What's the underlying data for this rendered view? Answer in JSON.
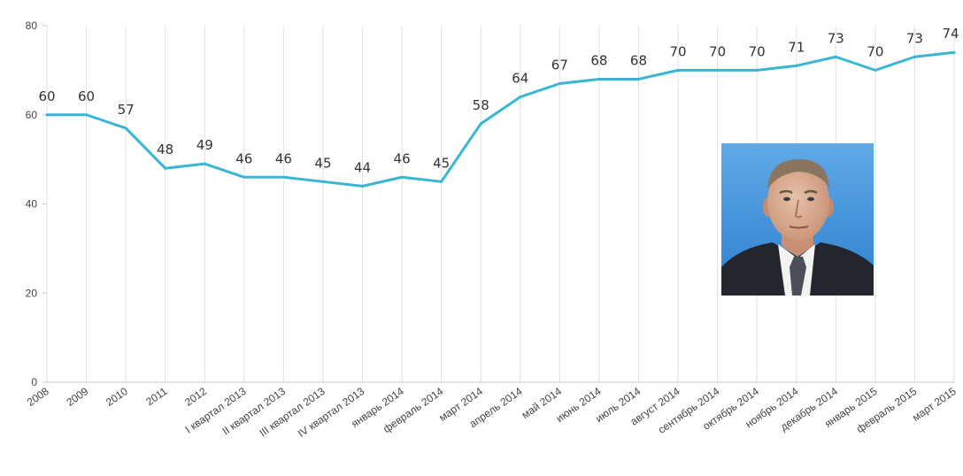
{
  "chart_data": {
    "type": "line",
    "title": "",
    "xlabel": "",
    "ylabel": "",
    "ylim": [
      0,
      80
    ],
    "yticks": [
      0,
      20,
      40,
      60,
      80
    ],
    "grid": "vertical",
    "line_color": "#3ab6d3",
    "categories": [
      "2008",
      "2009",
      "2010",
      "2011",
      "2012",
      "I квартал 2013",
      "II квартал 2013",
      "III квартал 2013",
      "IV квартал 2013",
      "январь 2014",
      "февраль 2014",
      "март 2014",
      "апрель 2014",
      "май 2014",
      "июнь 2014",
      "июль 2014",
      "август 2014",
      "сентябрь 2014",
      "октябрь 2014",
      "ноябрь 2014",
      "декабрь 2014",
      "январь 2015",
      "февраль 2015",
      "март 2015"
    ],
    "values": [
      60,
      60,
      57,
      48,
      49,
      46,
      46,
      45,
      44,
      46,
      45,
      58,
      64,
      67,
      68,
      68,
      70,
      70,
      70,
      71,
      73,
      70,
      73,
      74
    ]
  },
  "portrait": {
    "icon": "portrait-photo"
  }
}
